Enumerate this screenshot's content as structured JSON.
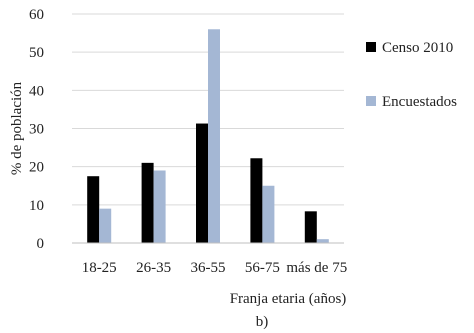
{
  "chart_data": {
    "type": "bar",
    "categories": [
      "18-25",
      "26-35",
      "36-55",
      "56-75",
      "más de 75"
    ],
    "series": [
      {
        "name": "Censo 2010",
        "values": [
          17.5,
          21,
          31.3,
          22.2,
          8.3
        ],
        "color": "#000000"
      },
      {
        "name": "Encuestados",
        "values": [
          9,
          19,
          56,
          15,
          1
        ],
        "color": "#a4b7d4"
      }
    ],
    "xlabel": "Franja etaria (años)",
    "ylabel": "% de población",
    "ylim": [
      0,
      60
    ],
    "yticks": [
      0,
      10,
      20,
      30,
      40,
      50,
      60
    ],
    "grid": true,
    "legend_position": "right",
    "caption": "b)"
  }
}
